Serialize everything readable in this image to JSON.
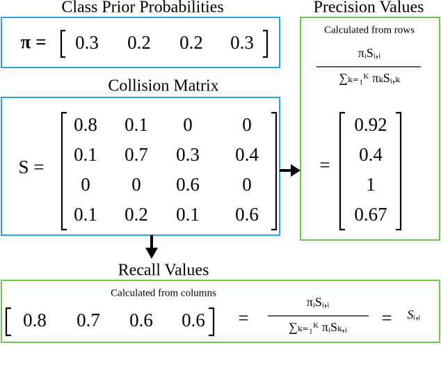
{
  "prior": {
    "title": "Class Prior Probabilities",
    "symbol": "π =",
    "values": [
      0.3,
      0.2,
      0.2,
      0.3
    ]
  },
  "collision": {
    "title": "Collision Matrix",
    "symbol": "S =",
    "rows": [
      [
        0.8,
        0.1,
        0,
        0
      ],
      [
        0.1,
        0.7,
        0.3,
        0.4
      ],
      [
        0,
        0,
        0.6,
        0
      ],
      [
        0.1,
        0.2,
        0.1,
        0.6
      ]
    ]
  },
  "precision": {
    "title": "Precision Values",
    "note": "Calculated from rows",
    "numerator": "πᵢSᵢ,ᵢ",
    "denominator": "∑ₖ₌₁ᴷ πₖSᵢ,ₖ",
    "equals": "=",
    "values": [
      0.92,
      0.4,
      1,
      0.67
    ]
  },
  "recall": {
    "title": "Recall Values",
    "note": "Calculated from columns",
    "values": [
      0.8,
      0.7,
      0.6,
      0.6
    ],
    "equals": "=",
    "numerator": "πᵢSᵢ,ᵢ",
    "denominator": "∑ₖ₌₁ᴷ πᵢSₖ,ᵢ",
    "equals2": "=",
    "result": "Sᵢ,ᵢ"
  }
}
